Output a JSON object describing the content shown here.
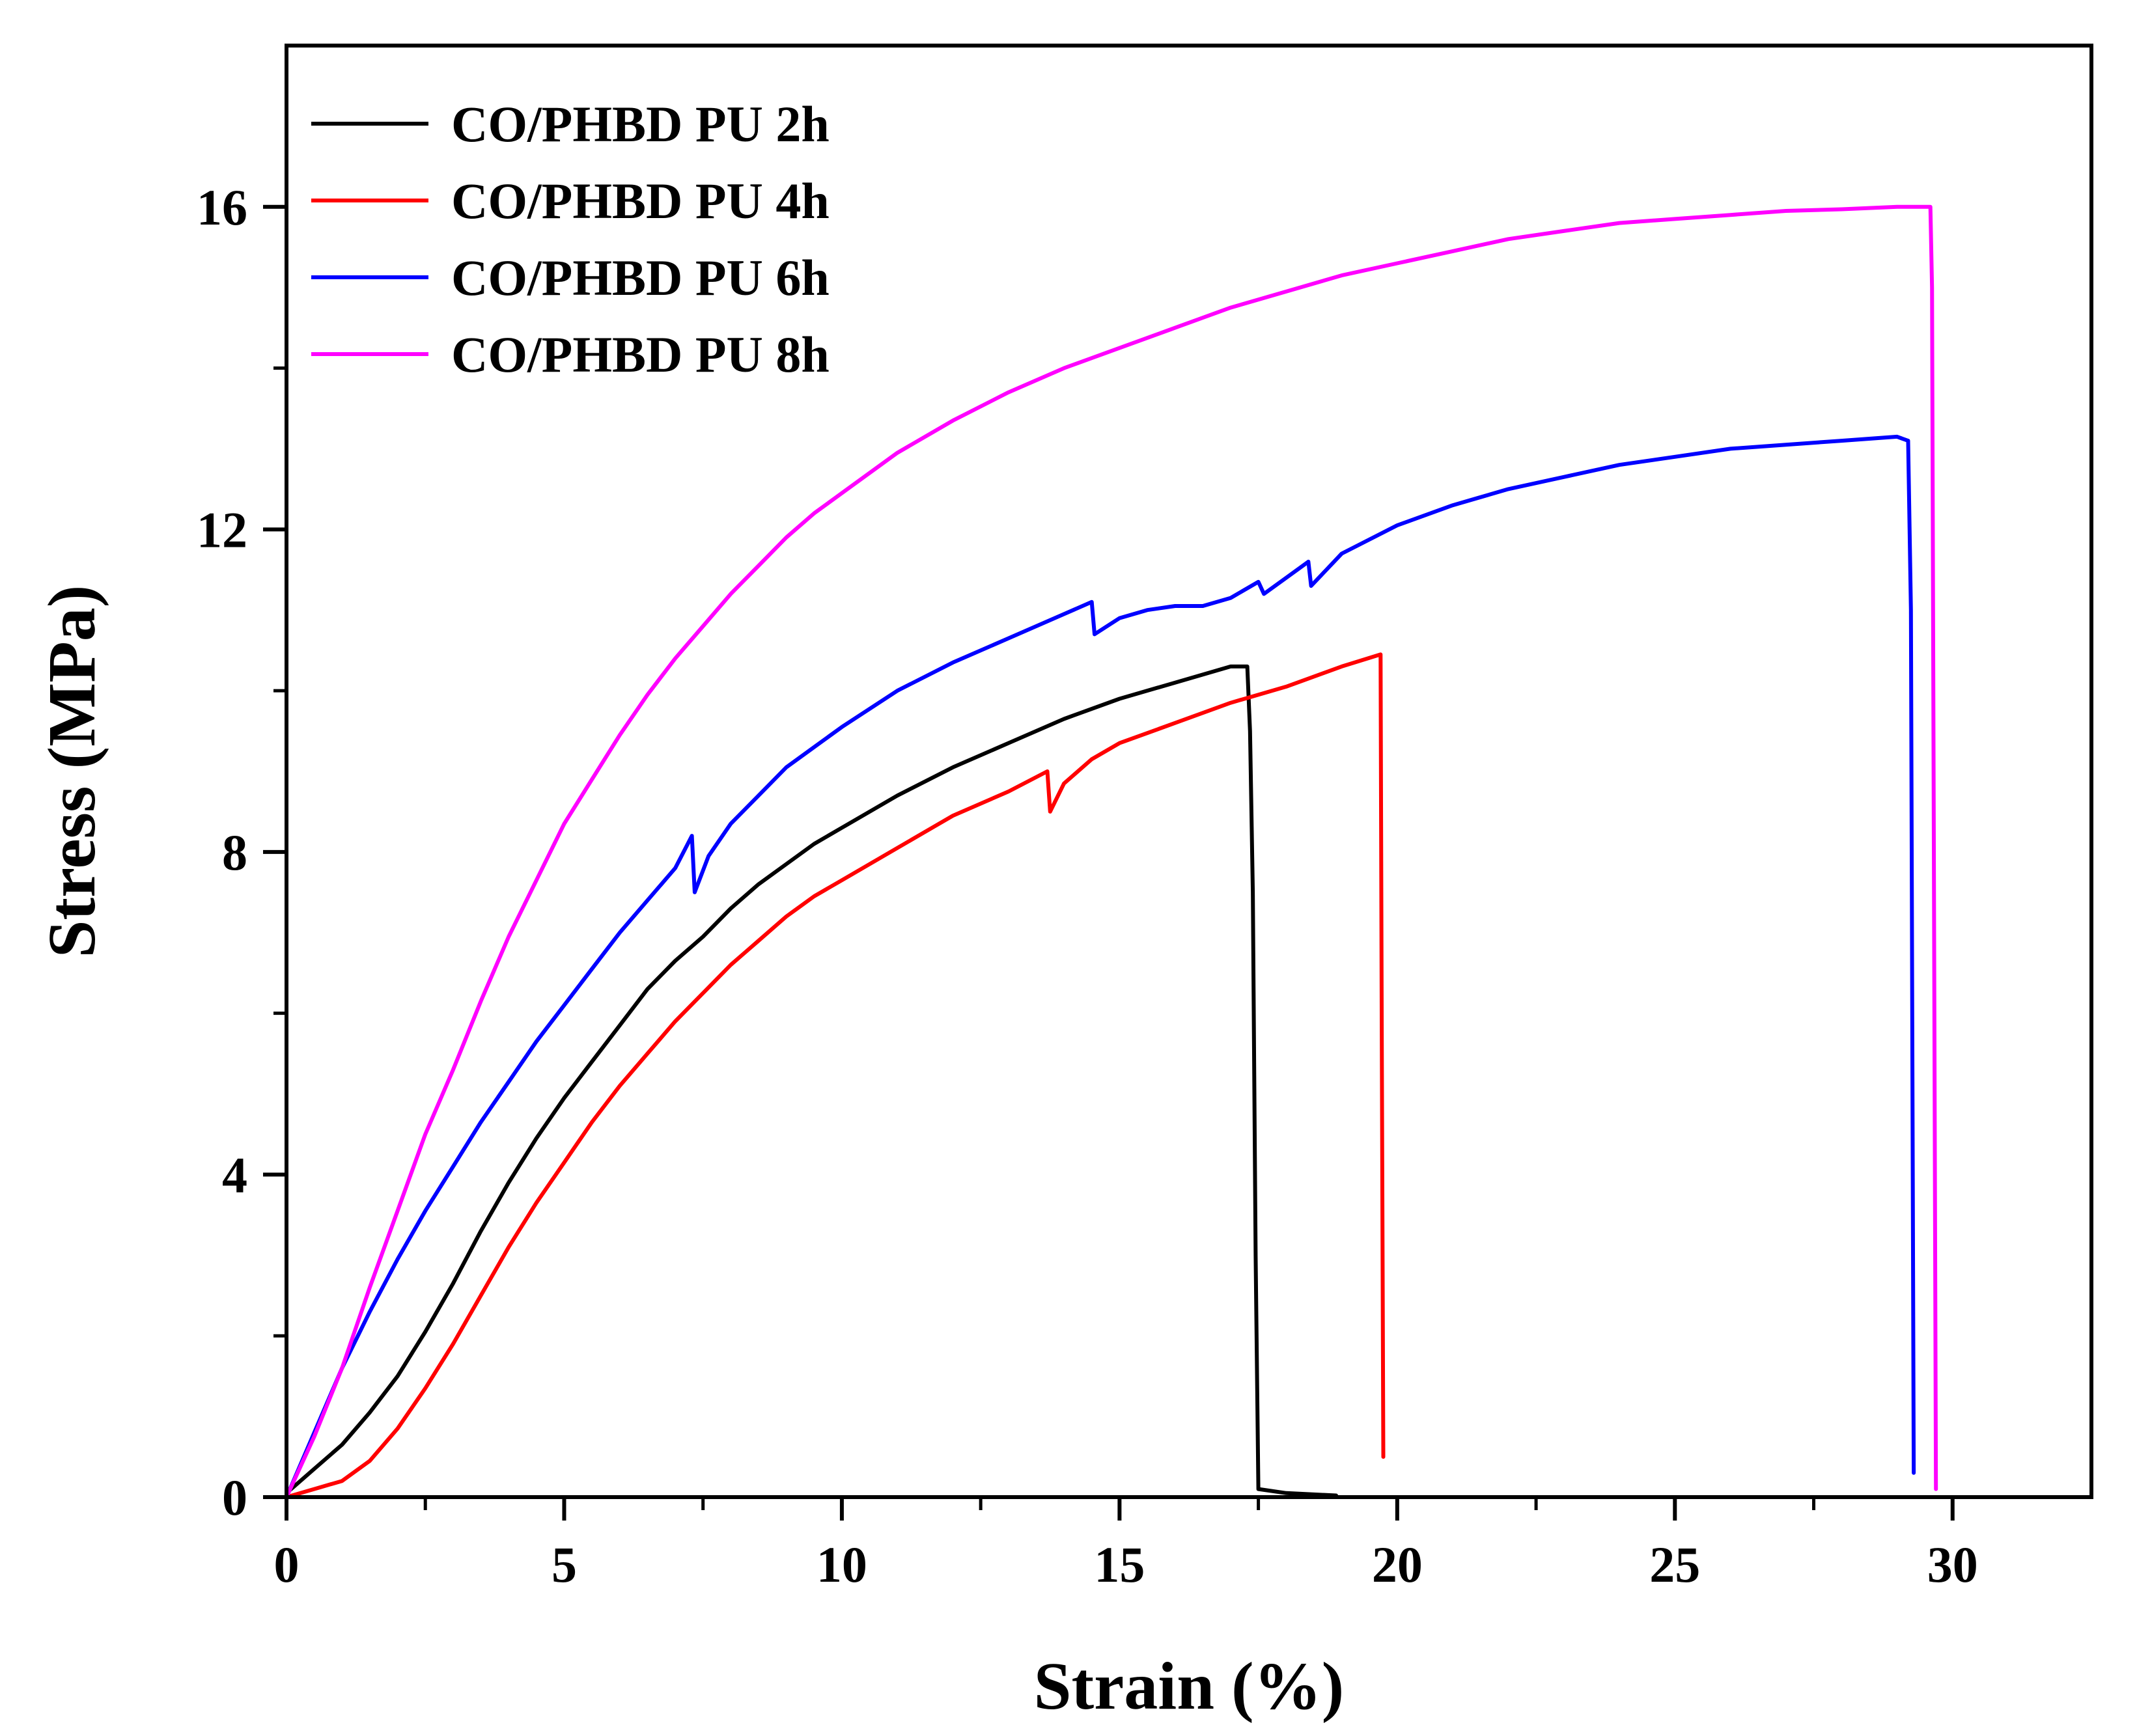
{
  "chart_data": {
    "type": "line",
    "title": "",
    "xlabel": "Strain (%)",
    "ylabel": "Stress (MPa)",
    "xlim": [
      0,
      32.5
    ],
    "ylim": [
      0,
      18
    ],
    "xticks": [
      0,
      5,
      10,
      15,
      20,
      25,
      30
    ],
    "xtick_labels": [
      "0",
      "5",
      "10",
      "15",
      "20",
      "25",
      "30"
    ],
    "yticks": [
      0,
      4,
      8,
      12,
      16
    ],
    "ytick_labels": [
      "0",
      "4",
      "8",
      "12",
      "16"
    ],
    "grid": false,
    "legend_position": "top-left",
    "series": [
      {
        "name": "CO/PHBD PU 2h",
        "color": "#000000",
        "points": [
          [
            0,
            0.05
          ],
          [
            0.5,
            0.35
          ],
          [
            1,
            0.65
          ],
          [
            1.5,
            1.05
          ],
          [
            2,
            1.5
          ],
          [
            2.5,
            2.05
          ],
          [
            3,
            2.65
          ],
          [
            3.5,
            3.3
          ],
          [
            4,
            3.9
          ],
          [
            4.5,
            4.45
          ],
          [
            5,
            4.95
          ],
          [
            5.5,
            5.4
          ],
          [
            6,
            5.85
          ],
          [
            6.5,
            6.3
          ],
          [
            7,
            6.65
          ],
          [
            7.5,
            6.95
          ],
          [
            8,
            7.3
          ],
          [
            8.5,
            7.6
          ],
          [
            9,
            7.85
          ],
          [
            9.5,
            8.1
          ],
          [
            10,
            8.3
          ],
          [
            11,
            8.7
          ],
          [
            12,
            9.05
          ],
          [
            13,
            9.35
          ],
          [
            14,
            9.65
          ],
          [
            15,
            9.9
          ],
          [
            16,
            10.1
          ],
          [
            17,
            10.3
          ],
          [
            17.3,
            10.3
          ],
          [
            17.35,
            9.5
          ],
          [
            17.4,
            7.5
          ],
          [
            17.45,
            3
          ],
          [
            17.5,
            0.1
          ],
          [
            18,
            0.05
          ],
          [
            18.9,
            0.02
          ]
        ]
      },
      {
        "name": "CO/PHBD PU 4h",
        "color": "#ff0000",
        "points": [
          [
            0,
            0
          ],
          [
            0.5,
            0.1
          ],
          [
            1,
            0.2
          ],
          [
            1.5,
            0.45
          ],
          [
            2,
            0.85
          ],
          [
            2.5,
            1.35
          ],
          [
            3,
            1.9
          ],
          [
            3.5,
            2.5
          ],
          [
            4,
            3.1
          ],
          [
            4.5,
            3.65
          ],
          [
            5,
            4.15
          ],
          [
            5.5,
            4.65
          ],
          [
            6,
            5.1
          ],
          [
            6.5,
            5.5
          ],
          [
            7,
            5.9
          ],
          [
            7.5,
            6.25
          ],
          [
            8,
            6.6
          ],
          [
            8.5,
            6.9
          ],
          [
            9,
            7.2
          ],
          [
            9.5,
            7.45
          ],
          [
            10,
            7.65
          ],
          [
            11,
            8.05
          ],
          [
            12,
            8.45
          ],
          [
            13,
            8.75
          ],
          [
            13.7,
            9.0
          ],
          [
            13.75,
            8.5
          ],
          [
            14,
            8.85
          ],
          [
            14.5,
            9.15
          ],
          [
            15,
            9.35
          ],
          [
            16,
            9.6
          ],
          [
            17,
            9.85
          ],
          [
            18,
            10.05
          ],
          [
            19,
            10.3
          ],
          [
            19.7,
            10.45
          ],
          [
            19.72,
            6
          ],
          [
            19.75,
            0.5
          ]
        ]
      },
      {
        "name": "CO/PHBD PU 6h",
        "color": "#0000ff",
        "points": [
          [
            0,
            0
          ],
          [
            0.5,
            0.8
          ],
          [
            1,
            1.6
          ],
          [
            1.5,
            2.3
          ],
          [
            2,
            2.95
          ],
          [
            2.5,
            3.55
          ],
          [
            3,
            4.1
          ],
          [
            3.5,
            4.65
          ],
          [
            4,
            5.15
          ],
          [
            4.5,
            5.65
          ],
          [
            5,
            6.1
          ],
          [
            5.5,
            6.55
          ],
          [
            6,
            7.0
          ],
          [
            6.5,
            7.4
          ],
          [
            7,
            7.8
          ],
          [
            7.3,
            8.2
          ],
          [
            7.35,
            7.5
          ],
          [
            7.6,
            7.95
          ],
          [
            8,
            8.35
          ],
          [
            8.5,
            8.7
          ],
          [
            9,
            9.05
          ],
          [
            9.5,
            9.3
          ],
          [
            10,
            9.55
          ],
          [
            11,
            10.0
          ],
          [
            12,
            10.35
          ],
          [
            13,
            10.65
          ],
          [
            14,
            10.95
          ],
          [
            14.5,
            11.1
          ],
          [
            14.55,
            10.7
          ],
          [
            15,
            10.9
          ],
          [
            15.5,
            11.0
          ],
          [
            16,
            11.05
          ],
          [
            16.5,
            11.05
          ],
          [
            17,
            11.15
          ],
          [
            17.5,
            11.35
          ],
          [
            17.6,
            11.2
          ],
          [
            18,
            11.4
          ],
          [
            18.4,
            11.6
          ],
          [
            18.45,
            11.3
          ],
          [
            19,
            11.7
          ],
          [
            20,
            12.05
          ],
          [
            21,
            12.3
          ],
          [
            22,
            12.5
          ],
          [
            23,
            12.65
          ],
          [
            24,
            12.8
          ],
          [
            25,
            12.9
          ],
          [
            26,
            13.0
          ],
          [
            27,
            13.05
          ],
          [
            28,
            13.1
          ],
          [
            29,
            13.15
          ],
          [
            29.2,
            13.1
          ],
          [
            29.25,
            11
          ],
          [
            29.3,
            0.3
          ]
        ]
      },
      {
        "name": "CO/PHBD PU 8h",
        "color": "#ff00ff",
        "points": [
          [
            0,
            0
          ],
          [
            0.5,
            0.75
          ],
          [
            1,
            1.6
          ],
          [
            1.5,
            2.6
          ],
          [
            2,
            3.55
          ],
          [
            2.5,
            4.5
          ],
          [
            3,
            5.3
          ],
          [
            3.5,
            6.15
          ],
          [
            4,
            6.95
          ],
          [
            4.5,
            7.65
          ],
          [
            5,
            8.35
          ],
          [
            5.5,
            8.9
          ],
          [
            6,
            9.45
          ],
          [
            6.5,
            9.95
          ],
          [
            7,
            10.4
          ],
          [
            7.5,
            10.8
          ],
          [
            8,
            11.2
          ],
          [
            8.5,
            11.55
          ],
          [
            9,
            11.9
          ],
          [
            9.5,
            12.2
          ],
          [
            10,
            12.45
          ],
          [
            11,
            12.95
          ],
          [
            12,
            13.35
          ],
          [
            13,
            13.7
          ],
          [
            14,
            14.0
          ],
          [
            15,
            14.25
          ],
          [
            16,
            14.5
          ],
          [
            17,
            14.75
          ],
          [
            18,
            14.95
          ],
          [
            19,
            15.15
          ],
          [
            20,
            15.3
          ],
          [
            21,
            15.45
          ],
          [
            22,
            15.6
          ],
          [
            23,
            15.7
          ],
          [
            24,
            15.8
          ],
          [
            25,
            15.85
          ],
          [
            26,
            15.9
          ],
          [
            27,
            15.95
          ],
          [
            28,
            15.97
          ],
          [
            29,
            16.0
          ],
          [
            29.6,
            16.0
          ],
          [
            29.63,
            15
          ],
          [
            29.7,
            0.1
          ]
        ]
      }
    ]
  }
}
